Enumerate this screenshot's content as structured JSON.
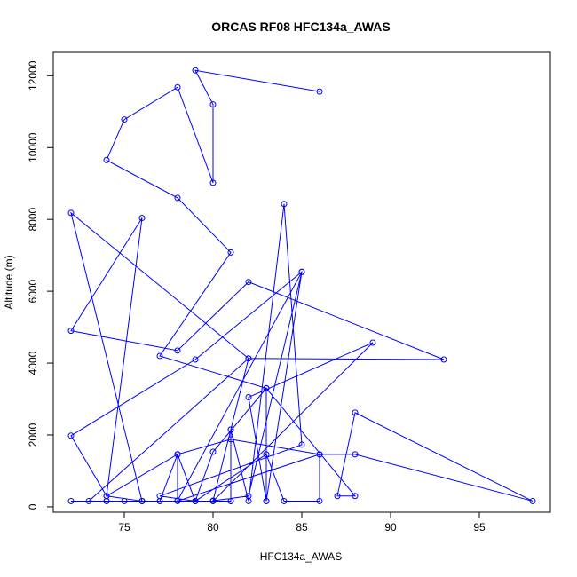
{
  "chart_data": {
    "type": "line",
    "title": "ORCAS RF08 HFC134a_AWAS",
    "xlabel": "HFC134a_AWAS",
    "ylabel": "Altitude (m)",
    "xlim": [
      71.0,
      99.0
    ],
    "ylim": [
      -150,
      12650
    ],
    "xticks": [
      75,
      80,
      85,
      90,
      95
    ],
    "yticks": [
      0,
      2000,
      4000,
      6000,
      8000,
      10000,
      12000
    ],
    "grid": false,
    "series": [
      {
        "color": "#0000ff",
        "marker": "open-circle",
        "x": [
          86,
          79,
          80,
          80,
          78,
          75,
          74,
          78,
          81,
          77,
          83,
          88,
          87,
          88,
          98,
          88,
          86,
          81,
          78,
          74,
          76,
          72,
          78,
          82,
          93,
          82,
          81,
          80,
          82,
          85,
          78,
          78,
          77,
          81,
          81,
          82,
          84,
          85,
          77,
          79,
          80,
          83,
          83,
          82,
          89,
          80,
          75,
          77,
          79,
          83,
          84,
          86,
          86,
          78,
          78,
          79,
          81,
          80,
          79,
          76,
          76,
          74,
          74,
          72,
          73,
          82,
          72,
          76,
          74,
          72,
          79,
          85,
          83
        ],
        "y": [
          11560,
          12150,
          11200,
          9020,
          11680,
          10780,
          9650,
          8600,
          7080,
          4200,
          3300,
          300,
          300,
          2620,
          160,
          1460,
          1460,
          1880,
          1460,
          300,
          8040,
          4900,
          4350,
          6260,
          4100,
          4130,
          2150,
          170,
          300,
          6540,
          170,
          1460,
          160,
          160,
          2150,
          160,
          8430,
          1730,
          300,
          160,
          1530,
          3300,
          160,
          3050,
          4570,
          160,
          160,
          160,
          160,
          1460,
          160,
          160,
          1460,
          160,
          1460,
          160,
          160,
          160,
          160,
          160,
          160,
          160,
          160,
          160,
          160,
          4130,
          8180,
          160,
          300,
          1980,
          4100,
          6540,
          160
        ]
      }
    ]
  }
}
